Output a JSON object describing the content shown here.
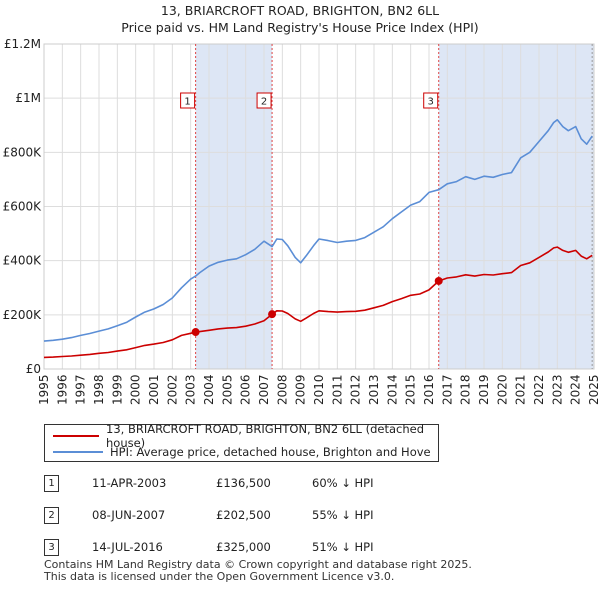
{
  "chart_data": {
    "type": "line",
    "title": "13, BRIARCROFT ROAD, BRIGHTON, BN2 6LL",
    "subtitle": "Price paid vs. HM Land Registry's House Price Index (HPI)",
    "xlim": [
      1995,
      2025
    ],
    "ylim": [
      0,
      1200000
    ],
    "x_ticks": [
      1995,
      1996,
      1997,
      1998,
      1999,
      2000,
      2001,
      2002,
      2003,
      2004,
      2005,
      2006,
      2007,
      2008,
      2009,
      2010,
      2011,
      2012,
      2013,
      2014,
      2015,
      2016,
      2017,
      2018,
      2019,
      2020,
      2021,
      2022,
      2023,
      2024,
      2025
    ],
    "y_ticks": [
      {
        "value": 0,
        "label": "£0"
      },
      {
        "value": 200000,
        "label": "£200K"
      },
      {
        "value": 400000,
        "label": "£400K"
      },
      {
        "value": 600000,
        "label": "£600K"
      },
      {
        "value": 800000,
        "label": "£800K"
      },
      {
        "value": 1000000,
        "label": "£1M"
      },
      {
        "value": 1200000,
        "label": "£1.2M"
      }
    ],
    "grid": true,
    "series": [
      {
        "name": "HPI: Average price, detached house, Brighton and Hove",
        "color": "#5b8ed6",
        "x": [
          1995,
          1995.5,
          1996,
          1996.5,
          1997,
          1997.5,
          1998,
          1998.5,
          1999,
          1999.5,
          2000,
          2000.5,
          2001,
          2001.5,
          2002,
          2002.5,
          2003,
          2003.27,
          2003.5,
          2004,
          2004.5,
          2005,
          2005.5,
          2006,
          2006.5,
          2007,
          2007.44,
          2007.7,
          2008,
          2008.3,
          2008.7,
          2009,
          2009.3,
          2009.7,
          2010,
          2010.5,
          2011,
          2011.5,
          2012,
          2012.5,
          2013,
          2013.5,
          2014,
          2014.5,
          2015,
          2015.5,
          2016,
          2016.53,
          2017,
          2017.5,
          2018,
          2018.5,
          2019,
          2019.5,
          2020,
          2020.5,
          2021,
          2021.5,
          2022,
          2022.5,
          2022.8,
          2023,
          2023.3,
          2023.6,
          2024,
          2024.3,
          2024.6,
          2024.9
        ],
        "values": [
          103000,
          106000,
          110000,
          116000,
          124000,
          131000,
          140000,
          148000,
          160000,
          172000,
          192000,
          210000,
          222000,
          238000,
          262000,
          300000,
          332000,
          343000,
          356000,
          380000,
          394000,
          402000,
          407000,
          422000,
          442000,
          472000,
          452000,
          480000,
          478000,
          455000,
          412000,
          392000,
          418000,
          455000,
          480000,
          474000,
          467000,
          472000,
          475000,
          485000,
          505000,
          525000,
          555000,
          580000,
          605000,
          618000,
          652000,
          662000,
          684000,
          692000,
          710000,
          700000,
          712000,
          708000,
          718000,
          725000,
          780000,
          800000,
          840000,
          880000,
          910000,
          920000,
          895000,
          880000,
          895000,
          850000,
          830000,
          860000
        ]
      },
      {
        "name": "13, BRIARCROFT ROAD, BRIGHTON, BN2 6LL (detached house)",
        "color": "#cc0000",
        "x": [
          1995,
          1995.5,
          1996,
          1996.5,
          1997,
          1997.5,
          1998,
          1998.5,
          1999,
          1999.5,
          2000,
          2000.5,
          2001,
          2001.5,
          2002,
          2002.5,
          2003,
          2003.27,
          2003.5,
          2004,
          2004.5,
          2005,
          2005.5,
          2006,
          2006.5,
          2007,
          2007.44,
          2007.7,
          2008,
          2008.3,
          2008.7,
          2009,
          2009.3,
          2009.7,
          2010,
          2010.5,
          2011,
          2011.5,
          2012,
          2012.5,
          2013,
          2013.5,
          2014,
          2014.5,
          2015,
          2015.5,
          2016,
          2016.53,
          2017,
          2017.5,
          2018,
          2018.5,
          2019,
          2019.5,
          2020,
          2020.5,
          2021,
          2021.5,
          2022,
          2022.5,
          2022.8,
          2023,
          2023.3,
          2023.6,
          2024,
          2024.3,
          2024.6,
          2024.9
        ],
        "values": [
          43000,
          44000,
          46000,
          48000,
          51000,
          54000,
          58000,
          61000,
          66000,
          71000,
          79000,
          87000,
          92000,
          98000,
          108000,
          124000,
          132000,
          136500,
          138000,
          143000,
          148000,
          151000,
          153000,
          158000,
          166000,
          178000,
          202500,
          215000,
          214000,
          205000,
          185000,
          176000,
          188000,
          205000,
          215000,
          212000,
          210000,
          212000,
          213000,
          217000,
          226000,
          235000,
          249000,
          260000,
          272000,
          277000,
          292000,
          325000,
          336000,
          340000,
          348000,
          343000,
          349000,
          347000,
          352000,
          356000,
          382000,
          392000,
          412000,
          432000,
          447000,
          450000,
          438000,
          431000,
          438000,
          417000,
          407000,
          420000
        ]
      }
    ],
    "sales": [
      {
        "label": "1",
        "x": 2003.27,
        "value": 136500
      },
      {
        "label": "2",
        "x": 2007.44,
        "value": 202500
      },
      {
        "label": "3",
        "x": 2016.53,
        "value": 325000
      }
    ]
  },
  "legend": {
    "property": "13, BRIARCROFT ROAD, BRIGHTON, BN2 6LL (detached house)",
    "hpi": "HPI: Average price, detached house, Brighton and Hove"
  },
  "transactions": [
    {
      "num": "1",
      "date": "11-APR-2003",
      "price": "£136,500",
      "hpi": "60% ↓ HPI"
    },
    {
      "num": "2",
      "date": "08-JUN-2007",
      "price": "£202,500",
      "hpi": "55% ↓ HPI"
    },
    {
      "num": "3",
      "date": "14-JUL-2016",
      "price": "£325,000",
      "hpi": "51% ↓ HPI"
    }
  ],
  "footer": {
    "line1": "Contains HM Land Registry data © Crown copyright and database right 2025.",
    "line2": "This data is licensed under the Open Government Licence v3.0."
  },
  "colors": {
    "property": "#cc0000",
    "hpi": "#5b8ed6",
    "shade": "#dde6f5",
    "grid": "#dddddd"
  }
}
